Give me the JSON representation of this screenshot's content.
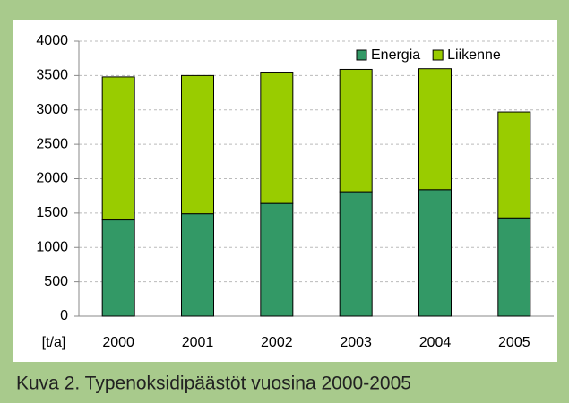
{
  "chart_data": {
    "type": "stacked_bar",
    "caption": "Kuva 2. Typenoksidipäästöt vuosina 2000-2005",
    "y_label": "[t/a]",
    "categories": [
      "2000",
      "2001",
      "2002",
      "2003",
      "2004",
      "2005"
    ],
    "series": [
      {
        "name": "Energia",
        "color": "#339966",
        "values": [
          1400,
          1490,
          1640,
          1810,
          1840,
          1430
        ]
      },
      {
        "name": "Liikenne",
        "color": "#99cc00",
        "values": [
          2080,
          2010,
          1910,
          1780,
          1760,
          1540
        ]
      }
    ],
    "ylim": [
      0,
      4000
    ],
    "yticks": [
      0,
      500,
      1000,
      1500,
      2000,
      2500,
      3000,
      3500,
      4000
    ],
    "grid": true,
    "legend": "top-right"
  }
}
